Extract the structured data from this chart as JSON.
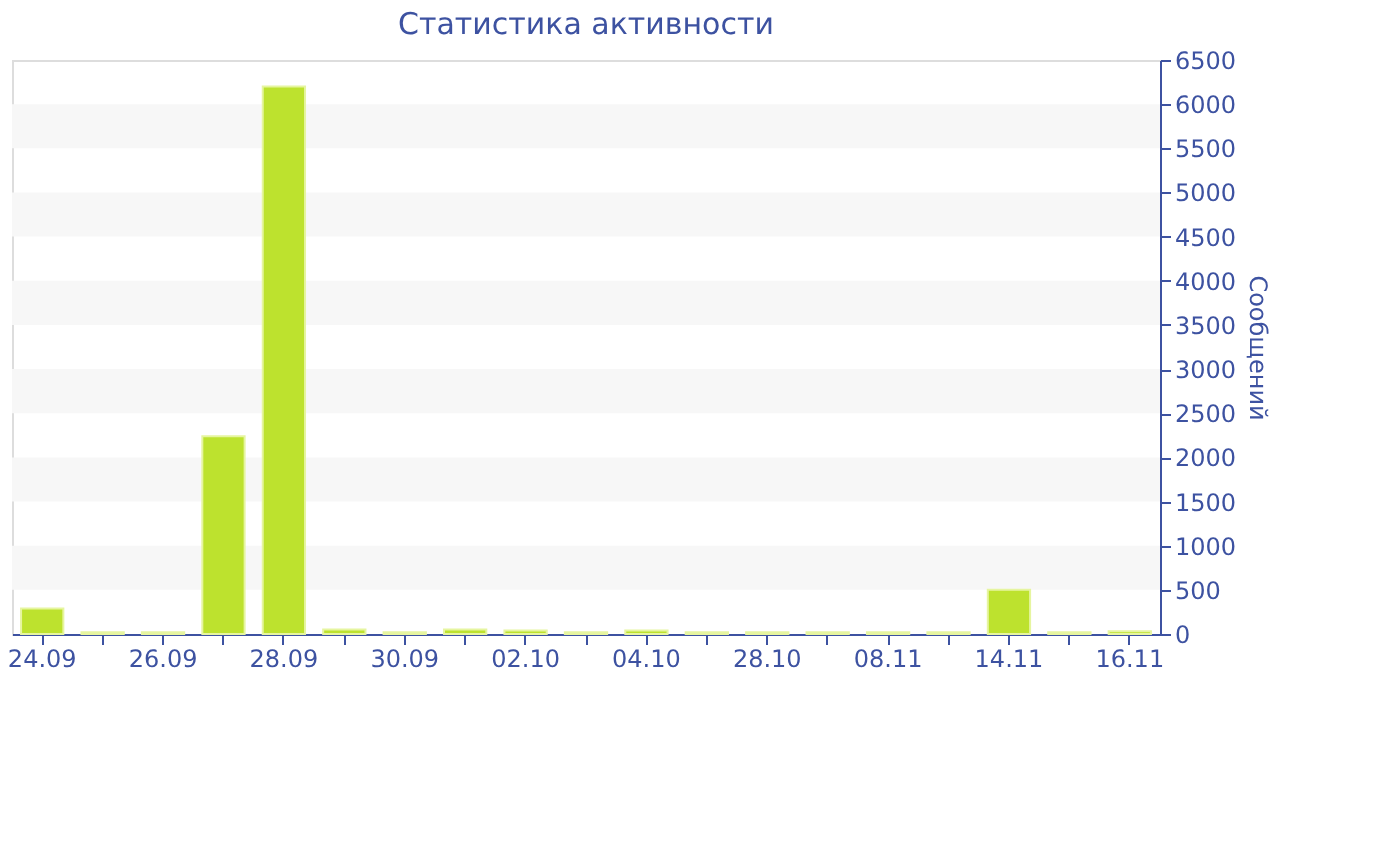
{
  "chart_data": {
    "type": "bar",
    "title": "Статистика активности",
    "ylabel": "Сообщений",
    "categories": [
      "24.09",
      null,
      "26.09",
      null,
      "28.09",
      null,
      "30.09",
      null,
      "02.10",
      null,
      "04.10",
      null,
      "28.10",
      null,
      "08.11",
      null,
      "14.11",
      null,
      "16.11"
    ],
    "values": [
      290,
      20,
      20,
      2240,
      6200,
      50,
      20,
      50,
      40,
      20,
      40,
      20,
      20,
      20,
      20,
      20,
      500,
      20,
      30
    ],
    "color": "#bde22e",
    "ylim": [
      0,
      6500
    ],
    "yticks": [
      0,
      500,
      1000,
      1500,
      2000,
      2500,
      3000,
      3500,
      4000,
      4500,
      5000,
      5500,
      6000,
      6500
    ],
    "bands": [
      {
        "axis": "y",
        "from": 500,
        "to": 1000,
        "color": "#f7f7f7"
      },
      {
        "axis": "y",
        "from": 1500,
        "to": 2000,
        "color": "#f7f7f7"
      },
      {
        "axis": "y",
        "from": 2500,
        "to": 3000,
        "color": "#f7f7f7"
      },
      {
        "axis": "y",
        "from": 3500,
        "to": 4000,
        "color": "#f7f7f7"
      },
      {
        "axis": "y",
        "from": 4500,
        "to": 5000,
        "color": "#f7f7f7"
      },
      {
        "axis": "y",
        "from": 5500,
        "to": 6000,
        "color": "#f7f7f7"
      }
    ]
  }
}
